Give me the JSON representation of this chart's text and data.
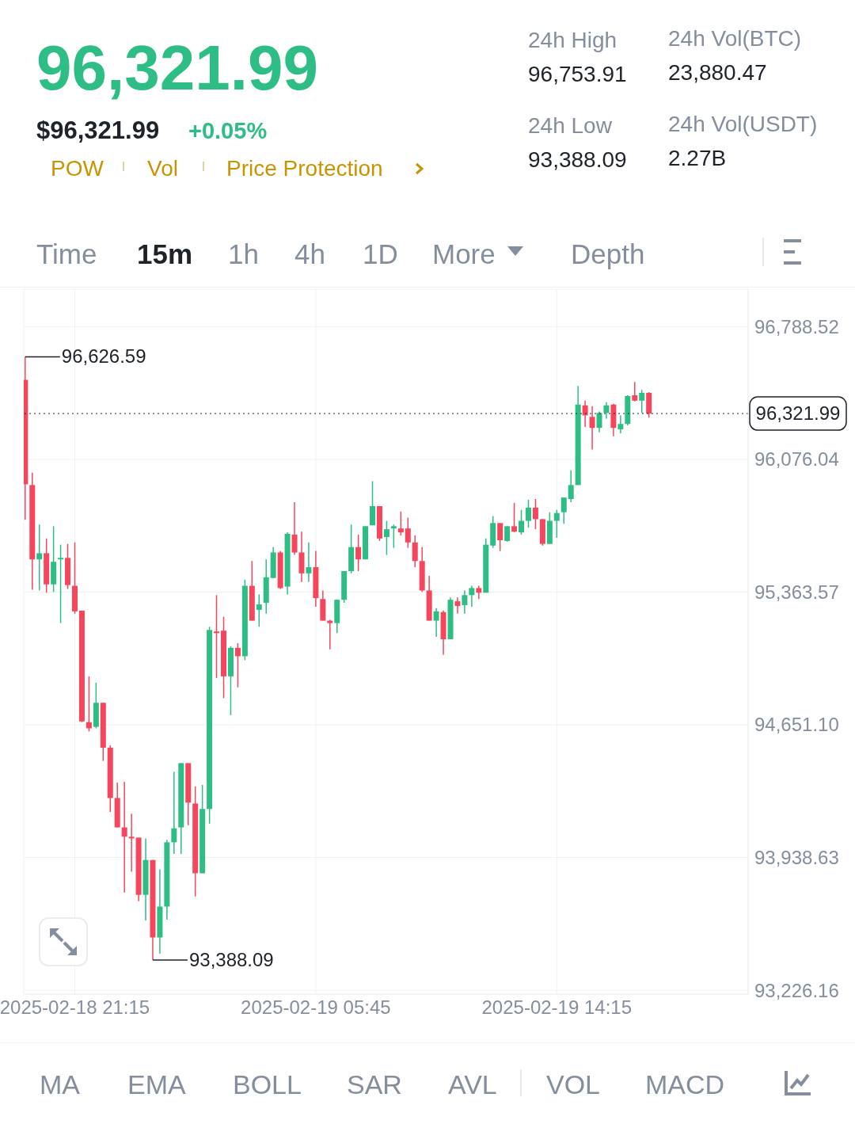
{
  "chart_data": {
    "type": "candlestick",
    "title": "96,321.99",
    "x": [
      "2025-02-18T19:30",
      "2025-02-18T19:45",
      "2025-02-18T20:00",
      "2025-02-18T20:15",
      "2025-02-18T20:30",
      "2025-02-18T20:45",
      "2025-02-18T21:00",
      "2025-02-18T21:15",
      "2025-02-18T21:30",
      "2025-02-18T21:45",
      "2025-02-18T22:00",
      "2025-02-18T22:15",
      "2025-02-18T22:30",
      "2025-02-18T22:45",
      "2025-02-18T23:00",
      "2025-02-18T23:15",
      "2025-02-18T23:30",
      "2025-02-18T23:45",
      "2025-02-19T00:00",
      "2025-02-19T00:15",
      "2025-02-19T00:30",
      "2025-02-19T00:45",
      "2025-02-19T01:00",
      "2025-02-19T01:15",
      "2025-02-19T01:30",
      "2025-02-19T01:45",
      "2025-02-19T02:00",
      "2025-02-19T02:15",
      "2025-02-19T02:30",
      "2025-02-19T02:45",
      "2025-02-19T03:00",
      "2025-02-19T03:15",
      "2025-02-19T03:30",
      "2025-02-19T03:45",
      "2025-02-19T04:00",
      "2025-02-19T04:15",
      "2025-02-19T04:30",
      "2025-02-19T04:45",
      "2025-02-19T05:00",
      "2025-02-19T05:15",
      "2025-02-19T05:30",
      "2025-02-19T05:45",
      "2025-02-19T06:00",
      "2025-02-19T06:15",
      "2025-02-19T06:30",
      "2025-02-19T06:45",
      "2025-02-19T07:00",
      "2025-02-19T07:15",
      "2025-02-19T07:30",
      "2025-02-19T07:45",
      "2025-02-19T08:00",
      "2025-02-19T08:15",
      "2025-02-19T08:30",
      "2025-02-19T08:45",
      "2025-02-19T09:00",
      "2025-02-19T09:15",
      "2025-02-19T09:30",
      "2025-02-19T09:45",
      "2025-02-19T10:00",
      "2025-02-19T10:15",
      "2025-02-19T10:30",
      "2025-02-19T10:45",
      "2025-02-19T11:00",
      "2025-02-19T11:15",
      "2025-02-19T11:30",
      "2025-02-19T11:45",
      "2025-02-19T12:00",
      "2025-02-19T12:15",
      "2025-02-19T12:30",
      "2025-02-19T12:45",
      "2025-02-19T13:00",
      "2025-02-19T13:15",
      "2025-02-19T13:30",
      "2025-02-19T13:45",
      "2025-02-19T14:00",
      "2025-02-19T14:15",
      "2025-02-19T14:30",
      "2025-02-19T14:45",
      "2025-02-19T15:00",
      "2025-02-19T15:15",
      "2025-02-19T15:30",
      "2025-02-19T15:45",
      "2025-02-19T16:00",
      "2025-02-19T16:15",
      "2025-02-19T16:30",
      "2025-02-19T16:45",
      "2025-02-19T17:00",
      "2025-02-19T17:15",
      "2025-02-19T17:30"
    ],
    "ohlc": [
      [
        96503,
        96626.59,
        95751,
        95942
      ],
      [
        95938,
        96004,
        95376,
        95539
      ],
      [
        95539,
        95726,
        95372,
        95572
      ],
      [
        95572,
        95651,
        95360,
        95405
      ],
      [
        95405,
        95717,
        95364,
        95526
      ],
      [
        95539,
        95618,
        95197,
        95547
      ],
      [
        95547,
        95622,
        95380,
        95401
      ],
      [
        95397,
        95630,
        95247,
        95260
      ],
      [
        95264,
        95264,
        94665,
        94669
      ],
      [
        94665,
        94911,
        94615,
        94632
      ],
      [
        94640,
        94877,
        94632,
        94769
      ],
      [
        94769,
        94769,
        94457,
        94528
      ],
      [
        94528,
        94540,
        94183,
        94258
      ],
      [
        94258,
        94341,
        94100,
        94100
      ],
      [
        94100,
        94345,
        93750,
        94050
      ],
      [
        94050,
        94174,
        93862,
        94041
      ],
      [
        94045,
        94045,
        93704,
        93738
      ],
      [
        93738,
        94041,
        93600,
        93925
      ],
      [
        93925,
        93925,
        93388.09,
        93509
      ],
      [
        93509,
        93875,
        93422,
        93675
      ],
      [
        93675,
        94033,
        93605,
        94020
      ],
      [
        94020,
        94399,
        93958,
        94095
      ],
      [
        94100,
        94445,
        93958,
        94445
      ],
      [
        94445,
        94445,
        94112,
        94233
      ],
      [
        94228,
        94320,
        93729,
        93854
      ],
      [
        93854,
        94328,
        93854,
        94199
      ],
      [
        94199,
        95177,
        94120,
        95160
      ],
      [
        95152,
        95347,
        94902,
        95143
      ],
      [
        95156,
        95231,
        94794,
        94911
      ],
      [
        94911,
        95073,
        94703,
        95064
      ],
      [
        95064,
        95089,
        94852,
        95019
      ],
      [
        95019,
        95430,
        94998,
        95397
      ],
      [
        95397,
        95530,
        95210,
        95210
      ],
      [
        95268,
        95351,
        95177,
        95297
      ],
      [
        95306,
        95539,
        95247,
        95443
      ],
      [
        95439,
        95605,
        95439,
        95576
      ],
      [
        95576,
        95584,
        95380,
        95385
      ],
      [
        95393,
        95684,
        95351,
        95676
      ],
      [
        95672,
        95846,
        95563,
        95576
      ],
      [
        95576,
        95688,
        95418,
        95464
      ],
      [
        95464,
        95630,
        95418,
        95497
      ],
      [
        95497,
        95584,
        95285,
        95331
      ],
      [
        95326,
        95372,
        95210,
        95210
      ],
      [
        95210,
        95214,
        95056,
        95197
      ],
      [
        95197,
        95322,
        95143,
        95322
      ],
      [
        95322,
        95476,
        95306,
        95476
      ],
      [
        95476,
        95726,
        95464,
        95605
      ],
      [
        95605,
        95672,
        95476,
        95539
      ],
      [
        95539,
        95717,
        95539,
        95717
      ],
      [
        95722,
        95959,
        95722,
        95825
      ],
      [
        95825,
        95825,
        95638,
        95651
      ],
      [
        95659,
        95746,
        95563,
        95701
      ],
      [
        95705,
        95726,
        95601,
        95717
      ],
      [
        95705,
        95796,
        95667,
        95684
      ],
      [
        95705,
        95763,
        95601,
        95630
      ],
      [
        95630,
        95667,
        95497,
        95530
      ],
      [
        95530,
        95605,
        95364,
        95372
      ],
      [
        95372,
        95451,
        95210,
        95210
      ],
      [
        95210,
        95277,
        95123,
        95260
      ],
      [
        95256,
        95264,
        95027,
        95110
      ],
      [
        95110,
        95335,
        95110,
        95322
      ],
      [
        95314,
        95335,
        95247,
        95289
      ],
      [
        95293,
        95372,
        95247,
        95347
      ],
      [
        95347,
        95397,
        95285,
        95385
      ],
      [
        95385,
        95397,
        95326,
        95360
      ],
      [
        95360,
        95651,
        95360,
        95618
      ],
      [
        95613,
        95771,
        95601,
        95734
      ],
      [
        95734,
        95734,
        95584,
        95642
      ],
      [
        95638,
        95717,
        95634,
        95717
      ],
      [
        95717,
        95842,
        95684,
        95688
      ],
      [
        95684,
        95805,
        95672,
        95746
      ],
      [
        95746,
        95859,
        95709,
        95817
      ],
      [
        95817,
        95863,
        95701,
        95755
      ],
      [
        95755,
        95755,
        95613,
        95622
      ],
      [
        95622,
        95792,
        95622,
        95746
      ],
      [
        95746,
        95805,
        95655,
        95788
      ],
      [
        95792,
        95871,
        95730,
        95871
      ],
      [
        95863,
        96017,
        95846,
        95938
      ],
      [
        95938,
        96470,
        95938,
        96370
      ],
      [
        96366,
        96391,
        96250,
        96312
      ],
      [
        96304,
        96362,
        96129,
        96245
      ],
      [
        96245,
        96333,
        96221,
        96325
      ],
      [
        96325,
        96383,
        96295,
        96366
      ],
      [
        96370,
        96374,
        96200,
        96245
      ],
      [
        96237,
        96312,
        96216,
        96266
      ],
      [
        96266,
        96420,
        96258,
        96416
      ],
      [
        96420,
        96491,
        96387,
        96391
      ],
      [
        96391,
        96449,
        96325,
        96433
      ],
      [
        96433,
        96437,
        96300,
        96321.99
      ]
    ],
    "colors": [
      "#f6465d",
      "#f6465d",
      "#2ebd85",
      "#f6465d",
      "#2ebd85",
      "#2ebd85",
      "#f6465d",
      "#f6465d",
      "#f6465d",
      "#f6465d",
      "#2ebd85",
      "#f6465d",
      "#f6465d",
      "#f6465d",
      "#f6465d",
      "#f6465d",
      "#f6465d",
      "#2ebd85",
      "#f6465d",
      "#2ebd85",
      "#2ebd85",
      "#2ebd85",
      "#2ebd85",
      "#f6465d",
      "#f6465d",
      "#2ebd85",
      "#2ebd85",
      "#f6465d",
      "#f6465d",
      "#2ebd85",
      "#f6465d",
      "#2ebd85",
      "#f6465d",
      "#2ebd85",
      "#2ebd85",
      "#2ebd85",
      "#f6465d",
      "#2ebd85",
      "#f6465d",
      "#f6465d",
      "#2ebd85",
      "#f6465d",
      "#f6465d",
      "#f6465d",
      "#2ebd85",
      "#2ebd85",
      "#2ebd85",
      "#f6465d",
      "#2ebd85",
      "#2ebd85",
      "#f6465d",
      "#2ebd85",
      "#2ebd85",
      "#f6465d",
      "#f6465d",
      "#f6465d",
      "#f6465d",
      "#f6465d",
      "#2ebd85",
      "#f6465d",
      "#2ebd85",
      "#f6465d",
      "#2ebd85",
      "#2ebd85",
      "#f6465d",
      "#2ebd85",
      "#2ebd85",
      "#f6465d",
      "#2ebd85",
      "#f6465d",
      "#2ebd85",
      "#2ebd85",
      "#f6465d",
      "#f6465d",
      "#2ebd85",
      "#2ebd85",
      "#2ebd85",
      "#2ebd85",
      "#2ebd85",
      "#f6465d",
      "#f6465d",
      "#2ebd85",
      "#2ebd85",
      "#f6465d",
      "#2ebd85",
      "#2ebd85",
      "#f6465d",
      "#2ebd85",
      "#f6465d"
    ],
    "xlim": [
      "2025-02-18T19:27",
      "2025-02-19T21:00"
    ],
    "xticks": [
      {
        "value": "2025-02-18T21:15",
        "label": "2025-02-18 21:15"
      },
      {
        "value": "2025-02-19T05:45",
        "label": "2025-02-19 05:45"
      },
      {
        "value": "2025-02-19T14:15",
        "label": "2025-02-19 14:15"
      }
    ],
    "ylim": [
      93205,
      96990
    ],
    "yticks": [
      {
        "value": 93226.16,
        "label": "93,226.16"
      },
      {
        "value": 93938.63,
        "label": "93,938.63"
      },
      {
        "value": 94651.1,
        "label": "94,651.10"
      },
      {
        "value": 95363.57,
        "label": "95,363.57"
      },
      {
        "value": 96076.04,
        "label": "96,076.04"
      },
      {
        "value": 96788.52,
        "label": "96,788.52"
      }
    ],
    "grid": true,
    "ref_lines": [
      {
        "axis": "y",
        "value": 96321.99,
        "label": "96,321.99",
        "color": "#1e2329",
        "line_style": "dotted"
      }
    ],
    "annotations": [
      "$96,321.99",
      "+0.05%",
      "POW",
      "Vol",
      "Price Protection",
      "24h High",
      "96,753.91",
      "24h Low",
      "93,388.09",
      "24h Vol(BTC)",
      "23,880.47",
      "24h Vol(USDT)",
      "2.27B",
      "Time",
      "15m",
      "1h",
      "4h",
      "1D",
      "More",
      "Depth",
      "MA",
      "EMA",
      "BOLL",
      "SAR",
      "AVL",
      "VOL",
      "MACD",
      {
        "text": "96,626.59",
        "x": "2025-02-18T19:30",
        "y": 96626.59
      },
      {
        "text": "93,388.09",
        "x": "2025-02-19T00:00",
        "y": 93388.09
      }
    ]
  }
}
